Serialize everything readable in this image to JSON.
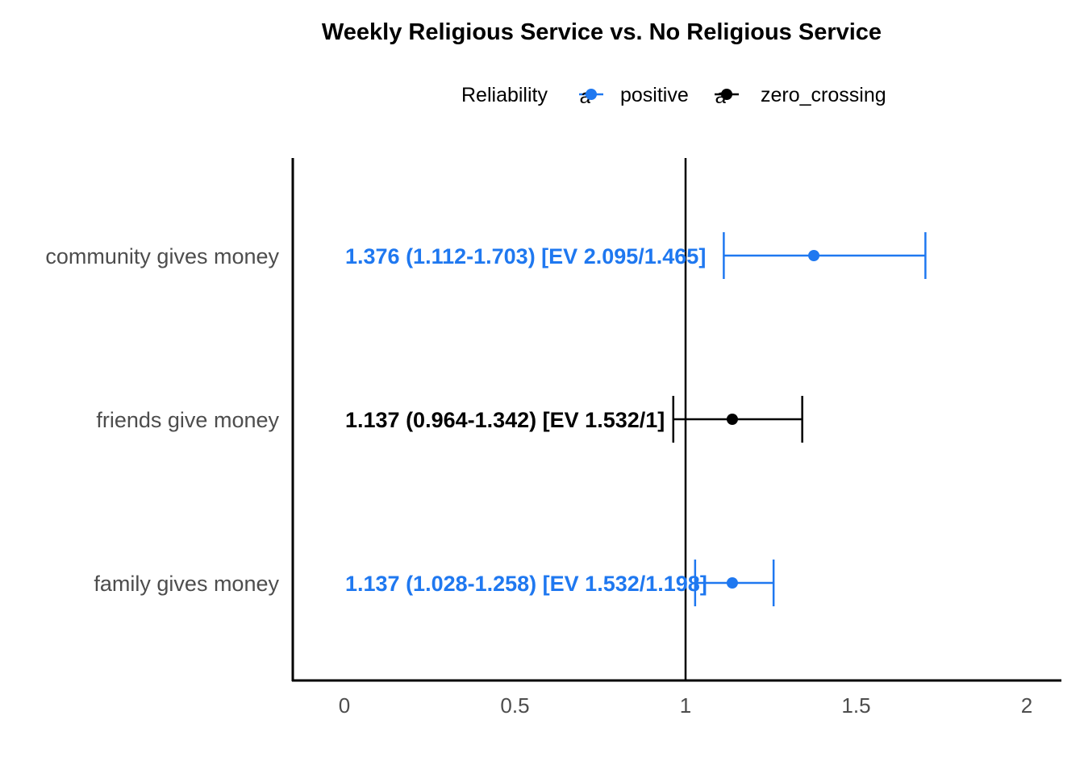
{
  "chart_data": {
    "type": "forest",
    "title": "Weekly Religious Service vs. No Religious Service",
    "xlabel": "",
    "ylabel": "",
    "xlim": [
      -0.15,
      2.1
    ],
    "reference_line": 1,
    "x_ticks": [
      {
        "value": 0,
        "label": "0"
      },
      {
        "value": 0.5,
        "label": "0.5"
      },
      {
        "value": 1,
        "label": "1"
      },
      {
        "value": 1.5,
        "label": "1.5"
      },
      {
        "value": 2,
        "label": "2"
      }
    ],
    "legend": {
      "title": "Reliability",
      "position": "top",
      "glyph_letter": "a",
      "items": [
        {
          "name": "positive",
          "color": "#1f78f0"
        },
        {
          "name": "zero_crossing",
          "color": "#000000"
        }
      ]
    },
    "categories": [
      "community gives money",
      "friends give money",
      "family gives money"
    ],
    "rows": [
      {
        "category": "community gives money",
        "estimate": 1.376,
        "lower": 1.112,
        "upper": 1.703,
        "reliability": "positive",
        "label": "1.376 (1.112-1.703) [EV 2.095/1.465]"
      },
      {
        "category": "friends give money",
        "estimate": 1.137,
        "lower": 0.964,
        "upper": 1.342,
        "reliability": "zero_crossing",
        "label": "1.137 (0.964-1.342) [EV 1.532/1]"
      },
      {
        "category": "family gives money",
        "estimate": 1.137,
        "lower": 1.028,
        "upper": 1.258,
        "reliability": "positive",
        "label": "1.137 (1.028-1.258) [EV 1.532/1.198]"
      }
    ]
  }
}
